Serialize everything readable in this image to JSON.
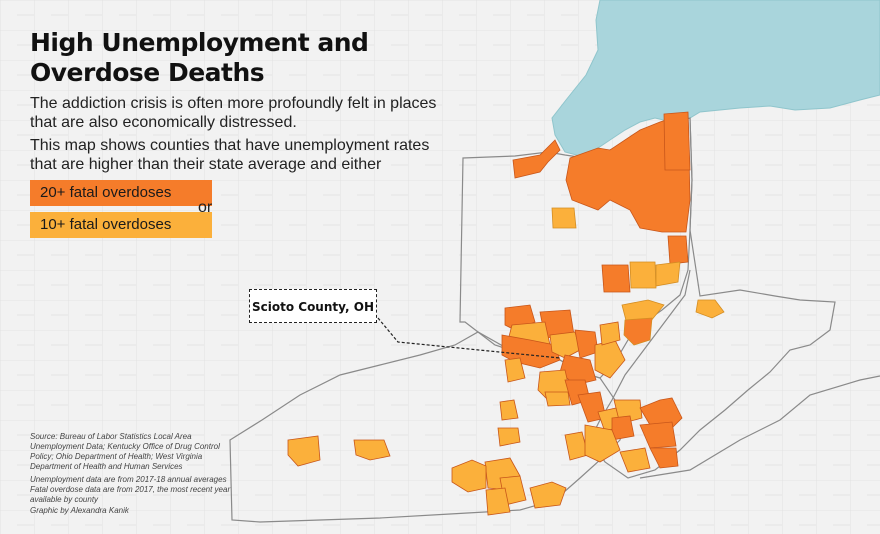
{
  "title": "High Unemployment and Overdose Deaths",
  "description": "The addiction crisis is often more profoundly felt in places that are also economically distressed.",
  "map_description": "This map shows counties that have unemployment rates that are higher than their state average and either",
  "legend": {
    "high": {
      "label": "20+ fatal overdoses",
      "color": "#f57c2a"
    },
    "mid": {
      "label": "10+ fatal overdoses",
      "color": "#fbb03b"
    },
    "conjunction": "or"
  },
  "callout": "Scioto County, OH",
  "sources": {
    "data": "Source: Bureau of Labor Statistics Local Area Unemployment Data; Kentucky Office of Drug Control Policy; Ohio Department of Health; West Virginia Department of Health and Human Services",
    "note": "Unemployment data are from 2017-18 annual averages Fatal overdose data are from 2017, the most recent year available by county",
    "credit": "Graphic by Alexandra Kanik"
  },
  "colors": {
    "background": "#f2f2f2",
    "lake": "#a9d5dc",
    "county_border": "#d8d8d8",
    "state_border": "#8a8a8a"
  }
}
